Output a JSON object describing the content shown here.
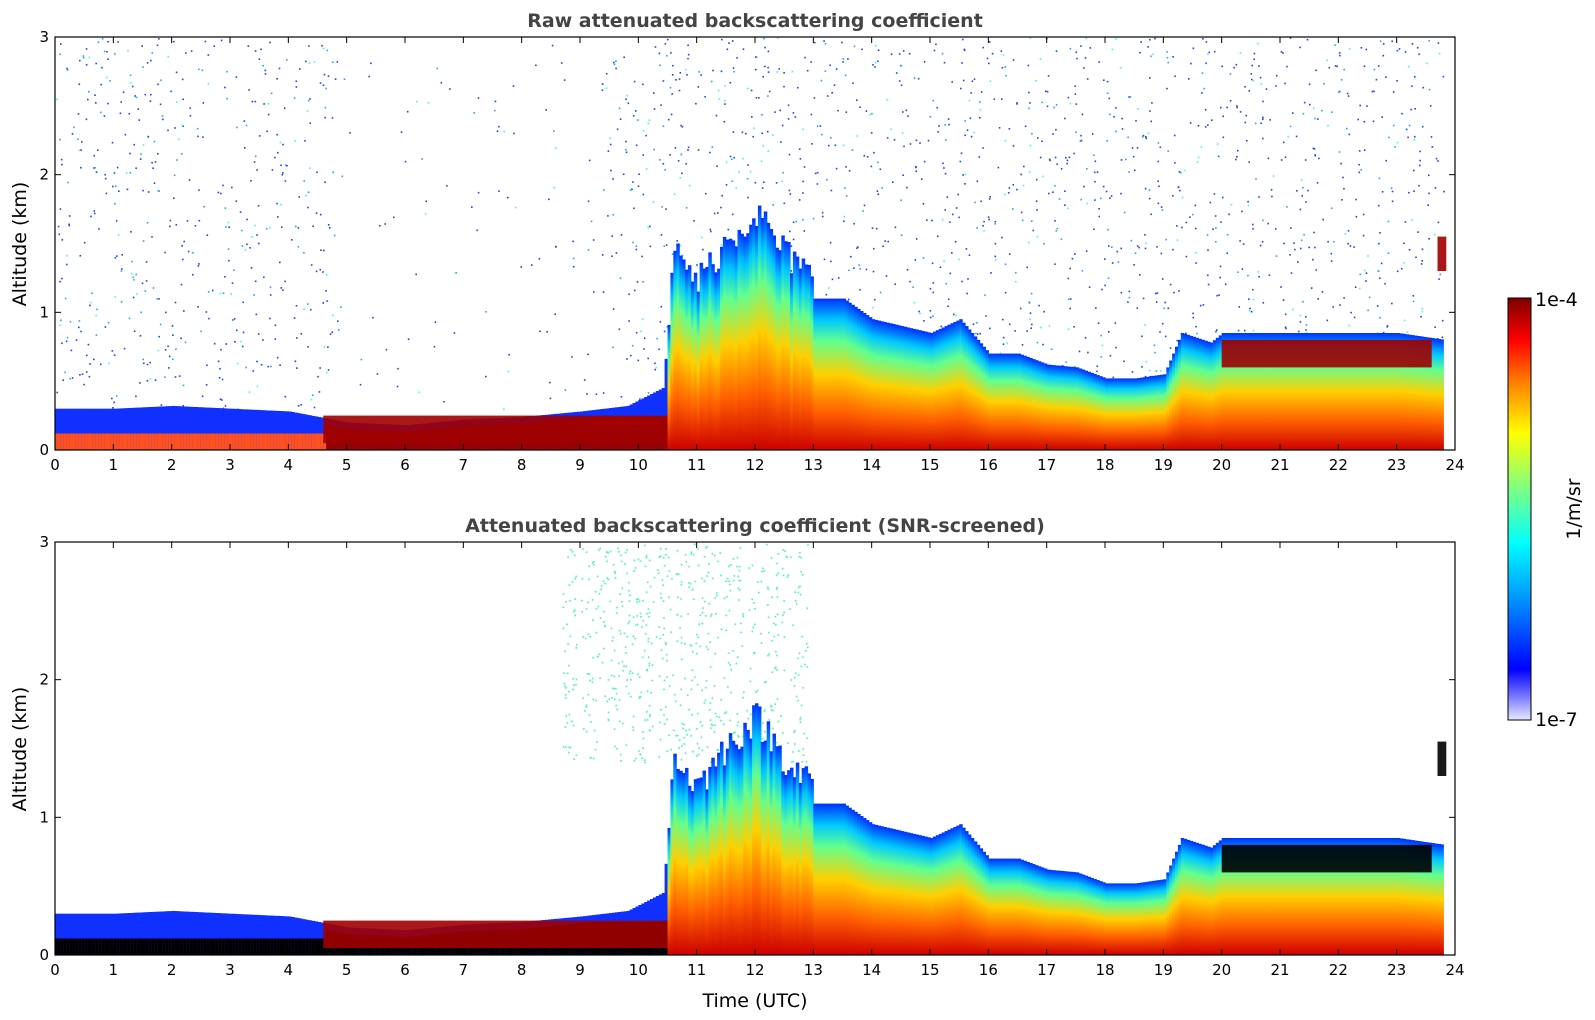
{
  "chart_data": [
    {
      "type": "heatmap",
      "title": "Raw attenuated backscattering coefficient",
      "xlabel": "",
      "ylabel": "Altitude (km)",
      "xlim": [
        0,
        24
      ],
      "ylim": [
        0,
        3
      ],
      "x_ticks": [
        "0",
        "1",
        "2",
        "3",
        "4",
        "5",
        "6",
        "7",
        "8",
        "9",
        "10",
        "11",
        "12",
        "13",
        "14",
        "15",
        "16",
        "17",
        "18",
        "19",
        "20",
        "21",
        "22",
        "23",
        "24"
      ],
      "y_ticks": [
        "0",
        "1",
        "2",
        "3"
      ],
      "color_scale": "log",
      "boundary_layer_top_km": [
        [
          0,
          0.3
        ],
        [
          1,
          0.3
        ],
        [
          2,
          0.32
        ],
        [
          3,
          0.3
        ],
        [
          4,
          0.28
        ],
        [
          5,
          0.2
        ],
        [
          6,
          0.18
        ],
        [
          7,
          0.22
        ],
        [
          8,
          0.24
        ],
        [
          9,
          0.28
        ],
        [
          9.8,
          0.32
        ],
        [
          10.4,
          0.45
        ],
        [
          10.6,
          1.3
        ],
        [
          11,
          1.1
        ],
        [
          11.5,
          1.4
        ],
        [
          12,
          1.6
        ],
        [
          12.5,
          1.3
        ],
        [
          13,
          1.1
        ],
        [
          13.5,
          1.1
        ],
        [
          14,
          0.95
        ],
        [
          14.5,
          0.9
        ],
        [
          15,
          0.85
        ],
        [
          15.5,
          0.95
        ],
        [
          16,
          0.7
        ],
        [
          16.5,
          0.7
        ],
        [
          17,
          0.62
        ],
        [
          17.5,
          0.6
        ],
        [
          18,
          0.52
        ],
        [
          18.5,
          0.52
        ],
        [
          19,
          0.55
        ],
        [
          19.3,
          0.85
        ],
        [
          19.8,
          0.78
        ],
        [
          20,
          0.85
        ],
        [
          21,
          0.85
        ],
        [
          22,
          0.85
        ],
        [
          23,
          0.85
        ],
        [
          23.8,
          0.8
        ]
      ],
      "elevated_layers": [
        {
          "x": [
            20,
            23.6
          ],
          "y_km": [
            0.6,
            0.8
          ],
          "level": "1e-4"
        },
        {
          "x": [
            23.7,
            23.85
          ],
          "y_km": [
            1.3,
            1.55
          ],
          "level": "1e-4"
        },
        {
          "x": [
            4.6,
            10.5
          ],
          "y_km": [
            0.05,
            0.25
          ],
          "level": "1e-4"
        }
      ]
    },
    {
      "type": "heatmap",
      "title": "Attenuated backscattering coefficient (SNR-screened)",
      "xlabel": "Time (UTC)",
      "ylabel": "Altitude (km)",
      "xlim": [
        0,
        24
      ],
      "ylim": [
        0,
        3
      ],
      "x_ticks": [
        "0",
        "1",
        "2",
        "3",
        "4",
        "5",
        "6",
        "7",
        "8",
        "9",
        "10",
        "11",
        "12",
        "13",
        "14",
        "15",
        "16",
        "17",
        "18",
        "19",
        "20",
        "21",
        "22",
        "23",
        "24"
      ],
      "y_ticks": [
        "0",
        "1",
        "2",
        "3"
      ],
      "color_scale": "log",
      "saturated_color": "#000000"
    }
  ],
  "colorbar": {
    "label": "1/m/sr",
    "max_label": "1e-4",
    "min_label": "1e-7",
    "colormap": "jet",
    "colors": [
      "#e8e8ff",
      "#0000ff",
      "#00a0ff",
      "#00ffff",
      "#80ff80",
      "#ffff00",
      "#ff8000",
      "#ff0000",
      "#800000"
    ]
  }
}
